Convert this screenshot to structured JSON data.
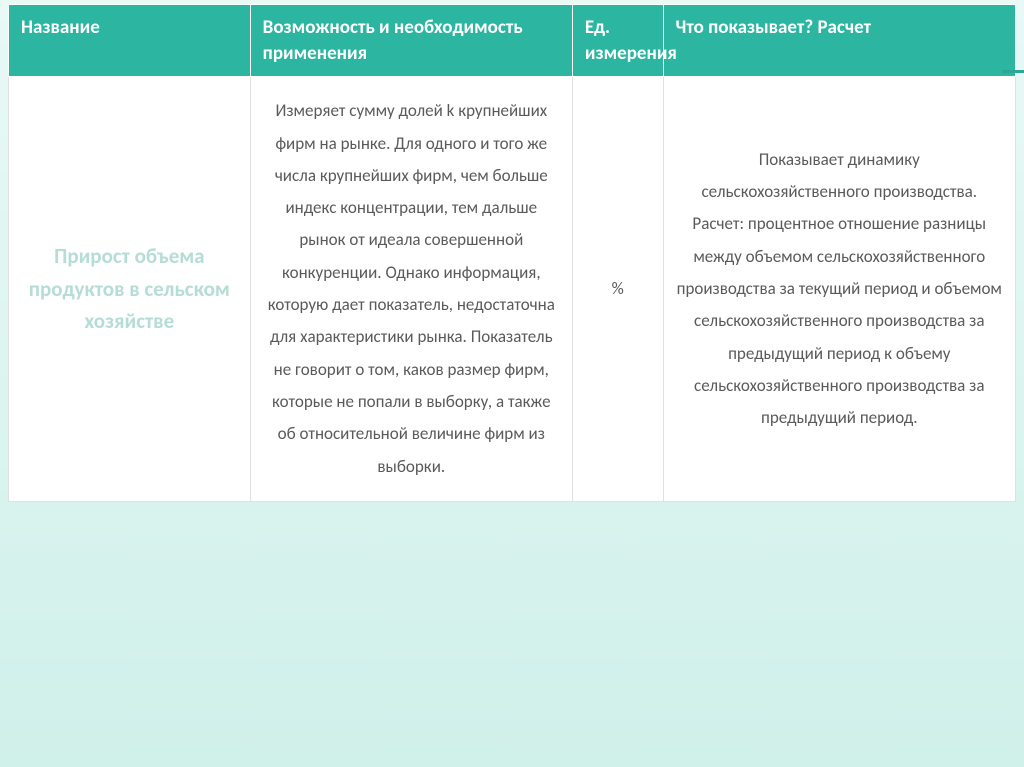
{
  "table": {
    "header_bg": "#2cb5a0",
    "header_color": "#ffffff",
    "body_bg": "#ffffff",
    "body_color": "#5a5a5a",
    "title_color": "#b5ddd5",
    "slide_bg_top": "#e8f9f6",
    "slide_bg_bottom": "#d0f0ea",
    "header_fontsize": 19,
    "body_fontsize": 17,
    "title_fontsize": 21,
    "columns": [
      {
        "label": "Название",
        "width_pct": 24
      },
      {
        "label": "Возможность и необходимость применения",
        "width_pct": 32
      },
      {
        "label": "Ед. измерения",
        "width_pct": 9
      },
      {
        "label": "Что показывает? Расчет",
        "width_pct": 35
      }
    ],
    "row": {
      "name": "Прирост объема продуктов в сельском хозяйстве",
      "possibility": "Измеряет сумму долей k крупнейших фирм на рынке. Для одного и того же числа крупнейших фирм, чем больше индекс концентрации, тем дальше рынок от идеала совершенной конкуренции. Однако информация, которую дает показатель, недостаточна для характеристики рынка. Показатель не говорит о том, каков размер фирм, которые не попали в выборку, а также об относительной величине фирм из выборки.",
      "unit": "%",
      "shows": "Показывает динамику сельскохозяйственного производства.\nРасчет: процентное отношение разницы между объемом сельскохозяйственного производства за текущий период и объемом сельскохозяйственного производства за предыдущий период к объему сельскохозяйственного производства за предыдущий период."
    }
  }
}
